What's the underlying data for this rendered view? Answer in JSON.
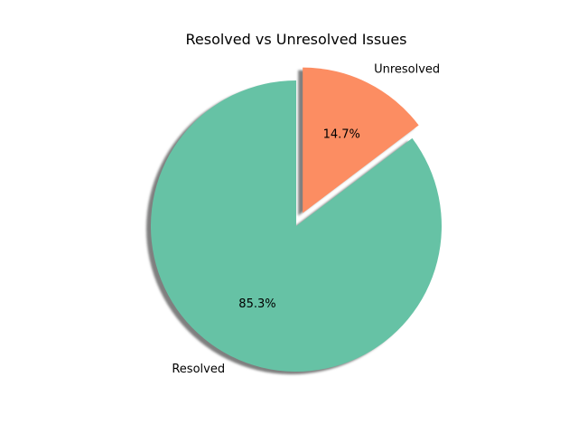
{
  "chart_data": {
    "type": "pie",
    "title": "Resolved vs Unresolved Issues",
    "categories": [
      "Resolved",
      "Unresolved"
    ],
    "values": [
      85.3,
      14.7
    ],
    "percent_labels": [
      "85.3%",
      "14.7%"
    ],
    "colors": [
      "#66c2a5",
      "#fc8d62"
    ],
    "exploded": [
      false,
      true
    ],
    "shadow": true,
    "start_angle_deg": 90,
    "direction": "counterclockwise"
  }
}
